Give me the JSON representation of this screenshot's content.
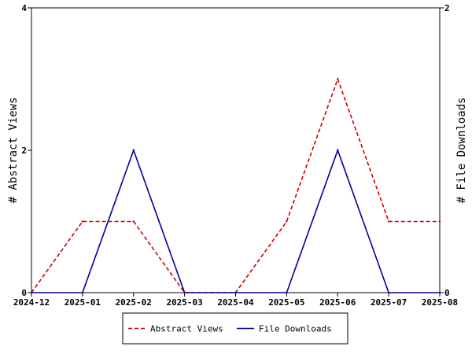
{
  "chart_data": {
    "type": "line",
    "x": [
      "2024-12",
      "2025-01",
      "2025-02",
      "2025-03",
      "2025-04",
      "2025-05",
      "2025-06",
      "2025-07",
      "2025-08"
    ],
    "series": [
      {
        "name": "Abstract Views",
        "axis": "left",
        "values": [
          0,
          1,
          1,
          0,
          0,
          1,
          3,
          1,
          1
        ],
        "color": "#cc0000",
        "style": "dashed"
      },
      {
        "name": "File Downloads",
        "axis": "right",
        "values": [
          0,
          0,
          1,
          0,
          0,
          0,
          1,
          0,
          0
        ],
        "color": "#000099",
        "style": "solid"
      }
    ],
    "ylabel": "# Abstract Views",
    "y2label": "# File Downloads",
    "ylim": [
      0,
      4
    ],
    "y2lim": [
      0,
      2
    ],
    "yticks": [
      "0",
      "2",
      "4"
    ],
    "y2ticks": [
      "0",
      "2"
    ],
    "grid": false,
    "legend_position": "bottom"
  }
}
